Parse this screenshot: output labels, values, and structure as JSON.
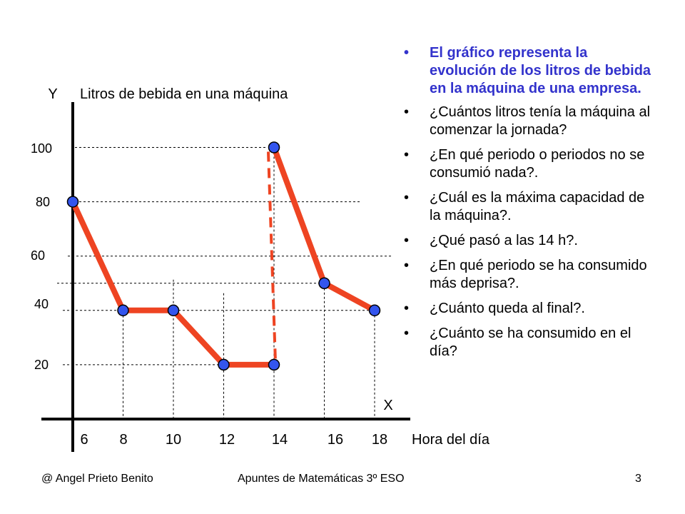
{
  "chart_data": {
    "type": "line",
    "title": "Litros de bebida en una máquina",
    "ylabel": "Y",
    "xlabel": "X",
    "x_axis_caption": "Hora del día",
    "x_ticks": [
      "6",
      "8",
      "10",
      "12",
      "14",
      "16",
      "18"
    ],
    "y_ticks": [
      "20",
      "40",
      "60",
      "80",
      "100"
    ],
    "xlim": [
      6,
      18
    ],
    "ylim": [
      0,
      100
    ],
    "points": [
      {
        "x": 6,
        "y": 80
      },
      {
        "x": 8,
        "y": 40
      },
      {
        "x": 10,
        "y": 40
      },
      {
        "x": 12,
        "y": 20
      },
      {
        "x": 14,
        "y": 20
      },
      {
        "x": 14,
        "y": 100
      },
      {
        "x": 16,
        "y": 50
      },
      {
        "x": 18,
        "y": 40
      }
    ],
    "refill": {
      "x": 14,
      "from": 20,
      "to": 100
    },
    "colors": {
      "line": "#ee4422",
      "marker": "#3355ee",
      "marker_edge": "#000000"
    }
  },
  "bullets": {
    "marker": "•",
    "intro": "El gráfico representa la evolución de los litros de bebida en la máquina de una empresa.",
    "questions": [
      "¿Cuántos litros tenía la máquina al comenzar la jornada?",
      "¿En qué periodo o periodos no se consumió nada?.",
      "¿Cuál es la máxima capacidad de la máquina?.",
      "¿Qué pasó a las 14 h?.",
      "¿En qué periodo se ha consumido más deprisa?.",
      "¿Cuánto queda al final?.",
      "¿Cuánto se ha consumido en el día?"
    ]
  },
  "footer": {
    "author": "@ Angel Prieto Benito",
    "course": "Apuntes de Matemáticas 3º ESO",
    "page": "3"
  }
}
